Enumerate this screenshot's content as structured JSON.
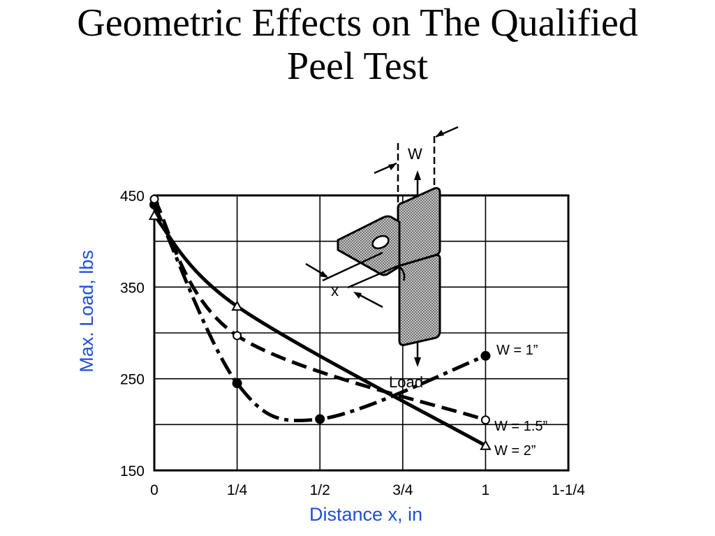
{
  "slide": {
    "title_line1": "Geometric Effects on The Qualified",
    "title_line2": "Peel Test"
  },
  "colors": {
    "axis_label": "#1f4fd8",
    "ink": "#000000",
    "hatch": "#8a8a8a"
  },
  "chart_data": {
    "type": "line",
    "xlabel": "Distance x, in",
    "ylabel": "Max. Load, lbs",
    "xlim": [
      0,
      1.25
    ],
    "ylim": [
      150,
      450
    ],
    "x_ticks": [
      {
        "value": 0,
        "label": "0"
      },
      {
        "value": 0.25,
        "label": "1/4"
      },
      {
        "value": 0.5,
        "label": "1/2"
      },
      {
        "value": 0.75,
        "label": "3/4"
      },
      {
        "value": 1.0,
        "label": "1"
      },
      {
        "value": 1.25,
        "label": "1-1/4"
      }
    ],
    "y_ticks": [
      {
        "value": 150,
        "label": "150"
      },
      {
        "value": 250,
        "label": "250"
      },
      {
        "value": 350,
        "label": "350"
      },
      {
        "value": 450,
        "label": "450"
      }
    ],
    "y_grid": [
      150,
      200,
      250,
      300,
      350,
      400,
      450
    ],
    "grid": true,
    "series": [
      {
        "name": "W = 1”",
        "marker": "filled-circle",
        "dash": "dashdot",
        "points": [
          [
            0,
            440
          ],
          [
            0.25,
            245
          ],
          [
            0.5,
            206
          ],
          [
            1.0,
            275
          ]
        ]
      },
      {
        "name": "W = 1.5”",
        "marker": "open-circle",
        "dash": "dashed",
        "points": [
          [
            0,
            446
          ],
          [
            0.25,
            297
          ],
          [
            1.0,
            205
          ]
        ]
      },
      {
        "name": "W = 2”",
        "marker": "open-triangle",
        "dash": "solid",
        "points": [
          [
            0,
            428
          ],
          [
            0.25,
            329
          ],
          [
            1.0,
            177
          ]
        ]
      }
    ]
  },
  "diagram": {
    "width_label": "W",
    "distance_label": "x",
    "load_label": "Load"
  }
}
